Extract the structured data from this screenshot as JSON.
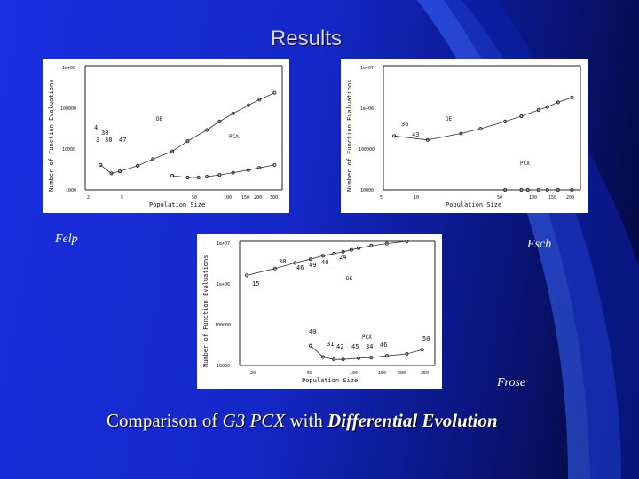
{
  "slide": {
    "title": "Results",
    "caption_pre": "Comparison of ",
    "caption_em": "G3 PCX",
    "caption_mid": " with ",
    "caption_strong": "Differential Evolution",
    "colors": {
      "bg_left": "#1a2fe0",
      "bg_right": "#020733",
      "swoosh": "#3a66ff"
    }
  },
  "labels": {
    "felp": "Felp",
    "fsch": "Fsch",
    "frose": "Frose"
  },
  "chart_data": [
    {
      "type": "line",
      "name_label": "Felp",
      "ylabel": "Number of Function Evaluations",
      "xlabel": "Population Size",
      "xticks": [
        "2",
        "5",
        "50",
        "100",
        "150",
        "200",
        "300"
      ],
      "yticks": [
        "1e+06",
        "100000",
        "10000",
        "1000"
      ],
      "annotations": [
        "DE",
        "PCX",
        "4",
        "30",
        "3",
        "38",
        "47"
      ],
      "series": [
        {
          "name": "DE",
          "x": [
            3,
            4,
            5,
            8,
            12,
            20,
            30,
            50,
            70,
            100,
            150,
            200,
            300
          ],
          "y": [
            4000,
            2500,
            2800,
            3800,
            5500,
            8500,
            15000,
            28000,
            45000,
            70000,
            110000,
            150000,
            220000
          ]
        },
        {
          "name": "PCX",
          "x": [
            20,
            30,
            40,
            50,
            70,
            100,
            150,
            200,
            300
          ],
          "y": [
            2200,
            2000,
            2000,
            2100,
            2300,
            2600,
            3000,
            3400,
            4000
          ]
        }
      ]
    },
    {
      "type": "line",
      "name_label": "Fsch",
      "ylabel": "Number of Function Evaluations",
      "xlabel": "Population Size",
      "xticks": [
        "5",
        "10",
        "50",
        "100",
        "150",
        "200"
      ],
      "yticks": [
        "1e+07",
        "1e+06",
        "100000",
        "10000"
      ],
      "annotations": [
        "DE",
        "PCX",
        "36",
        "43"
      ],
      "series": [
        {
          "name": "DE",
          "x": [
            5,
            10,
            20,
            30,
            50,
            70,
            100,
            120,
            150,
            200
          ],
          "y": [
            200000,
            160000,
            230000,
            300000,
            450000,
            600000,
            850000,
            1000000,
            1300000,
            1700000
          ]
        },
        {
          "name": "PCX",
          "x": [
            50,
            70,
            80,
            100,
            120,
            150,
            200
          ],
          "y": [
            10000,
            10000,
            10000,
            10000,
            10000,
            10000,
            10000
          ]
        }
      ]
    },
    {
      "type": "line",
      "name_label": "Frose",
      "ylabel": "Number of Function Evaluations",
      "xlabel": "Population Size",
      "xticks": [
        "20",
        "50",
        "100",
        "150",
        "200",
        "250"
      ],
      "yticks": [
        "1e+07",
        "1e+06",
        "100000",
        "10000"
      ],
      "annotations": [
        "DE",
        "PCX",
        "30",
        "15",
        "46",
        "49",
        "40",
        "24",
        "40",
        "31",
        "42",
        "45",
        "34",
        "46",
        "50"
      ],
      "series": [
        {
          "name": "DE",
          "x": [
            20,
            30,
            40,
            50,
            60,
            70,
            80,
            90,
            100,
            120,
            150,
            200
          ],
          "y": [
            1500000,
            2200000,
            3000000,
            3700000,
            4500000,
            5000000,
            5600000,
            6200000,
            6800000,
            7800000,
            8800000,
            10000000
          ]
        },
        {
          "name": "PCX",
          "x": [
            50,
            60,
            70,
            80,
            100,
            120,
            150,
            200,
            250
          ],
          "y": [
            30000,
            16000,
            14000,
            14000,
            15000,
            15500,
            17000,
            19000,
            24000
          ]
        }
      ]
    }
  ]
}
